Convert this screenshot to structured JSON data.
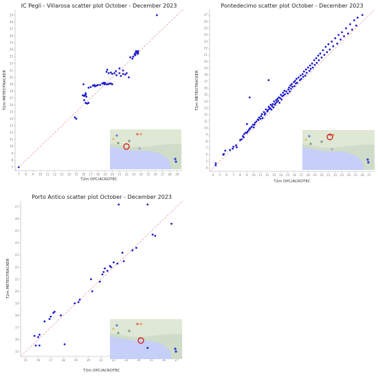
{
  "colors": {
    "point": "#1a1acc",
    "diagonal": "#e8a0a0",
    "frame": "#aaaaaa",
    "tick": "#777777"
  },
  "chart_data": [
    {
      "type": "scatter",
      "title": "IC Pegli - Villarosa scatter plot October - December 2023",
      "xlabel": "T2m DPC/ACROTEC",
      "ylabel": "T2m METEOTRACKER",
      "xticks": [
        7,
        8,
        9,
        10,
        11,
        12,
        13,
        14,
        15,
        16,
        17,
        18,
        19,
        20,
        21,
        22,
        23,
        24,
        25,
        26,
        27,
        28,
        29
      ],
      "yticks": [
        7,
        8,
        9,
        10,
        11,
        12,
        13,
        14,
        15,
        16,
        17,
        18,
        19,
        20,
        21,
        22,
        23,
        24,
        25,
        26,
        27,
        28,
        29
      ],
      "xlim": [
        6.5,
        29.8
      ],
      "ylim": [
        6.5,
        29.8
      ],
      "diagonal": true,
      "points": [
        [
          7.0,
          7.0
        ],
        [
          14.8,
          14.2
        ],
        [
          15.0,
          14.0
        ],
        [
          16.1,
          16.7
        ],
        [
          16.3,
          16.3
        ],
        [
          16.5,
          16.2
        ],
        [
          16.7,
          16.3
        ],
        [
          15.9,
          17.4
        ],
        [
          16.1,
          17.3
        ],
        [
          16.2,
          17.4
        ],
        [
          16.3,
          17.5
        ],
        [
          16.3,
          17.7
        ],
        [
          16.4,
          17.2
        ],
        [
          16.0,
          19.0
        ],
        [
          16.7,
          18.5
        ],
        [
          17.0,
          18.6
        ],
        [
          17.3,
          18.8
        ],
        [
          17.5,
          18.9
        ],
        [
          17.6,
          18.7
        ],
        [
          18.0,
          18.9
        ],
        [
          17.8,
          18.8
        ],
        [
          18.3,
          18.9
        ],
        [
          18.6,
          19.1
        ],
        [
          18.8,
          19.2
        ],
        [
          18.9,
          19.0
        ],
        [
          19.0,
          19.2
        ],
        [
          19.2,
          19.0
        ],
        [
          19.4,
          19.0
        ],
        [
          19.6,
          19.1
        ],
        [
          19.8,
          19.1
        ],
        [
          20.0,
          19.0
        ],
        [
          19.2,
          20.8
        ],
        [
          19.3,
          21.1
        ],
        [
          19.5,
          20.6
        ],
        [
          19.8,
          20.7
        ],
        [
          20.0,
          20.5
        ],
        [
          20.3,
          20.6
        ],
        [
          20.5,
          20.9
        ],
        [
          20.6,
          20.3
        ],
        [
          21.0,
          20.6
        ],
        [
          21.2,
          20.2
        ],
        [
          21.5,
          20.5
        ],
        [
          21.8,
          20.4
        ],
        [
          21.5,
          21.0
        ],
        [
          21.0,
          21.3
        ],
        [
          22.0,
          20.6
        ],
        [
          22.3,
          20.0
        ],
        [
          22.5,
          22.9
        ],
        [
          22.8,
          22.7
        ],
        [
          22.9,
          23.0
        ],
        [
          23.1,
          23.3
        ],
        [
          23.2,
          23.2
        ],
        [
          23.2,
          23.5
        ],
        [
          23.3,
          23.6
        ],
        [
          23.4,
          23.7
        ],
        [
          23.5,
          23.7
        ],
        [
          23.5,
          23.4
        ],
        [
          23.6,
          23.8
        ],
        [
          23.6,
          23.5
        ],
        [
          23.3,
          23.8
        ],
        [
          26.2,
          29.0
        ]
      ]
    },
    {
      "type": "scatter",
      "title": "Pontedecimo scatter plot October - December 2023",
      "xlabel": "T2m DPC/ACROTEC",
      "ylabel": "T2m METEOTRACKER",
      "xticks": [
        4,
        5,
        6,
        7,
        8,
        9,
        10,
        11,
        12,
        13,
        14,
        15,
        16,
        17,
        18,
        19,
        20,
        21,
        22,
        23,
        24,
        25,
        26,
        27
      ],
      "yticks": [
        4,
        5,
        6,
        7,
        8,
        9,
        10,
        11,
        12,
        13,
        14,
        15,
        16,
        17,
        18,
        19,
        20,
        21,
        22,
        23,
        24,
        25,
        26,
        27
      ],
      "xlim": [
        3.5,
        27.8
      ],
      "ylim": [
        3.5,
        27.8
      ],
      "diagonal": true,
      "points": [
        [
          4.4,
          4.4
        ],
        [
          4.4,
          4.7
        ],
        [
          5.5,
          6.0
        ],
        [
          5.6,
          6.1
        ],
        [
          5.8,
          6.6
        ],
        [
          6.5,
          6.7
        ],
        [
          6.9,
          6.9
        ],
        [
          7.0,
          7.2
        ],
        [
          7.4,
          7.4
        ],
        [
          7.5,
          7.1
        ],
        [
          8.0,
          8.2
        ],
        [
          8.2,
          8.3
        ],
        [
          8.4,
          8.8
        ],
        [
          8.5,
          8.6
        ],
        [
          8.6,
          9.1
        ],
        [
          8.8,
          9.3
        ],
        [
          9.0,
          9.3
        ],
        [
          9.1,
          9.5
        ],
        [
          9.3,
          9.7
        ],
        [
          9.4,
          9.9
        ],
        [
          9.0,
          10.6
        ],
        [
          9.5,
          10.0
        ],
        [
          9.7,
          10.2
        ],
        [
          9.9,
          10.5
        ],
        [
          10.0,
          10.1
        ],
        [
          10.1,
          10.5
        ],
        [
          10.2,
          10.8
        ],
        [
          10.4,
          11.0
        ],
        [
          10.6,
          11.3
        ],
        [
          10.7,
          11.2
        ],
        [
          10.8,
          11.6
        ],
        [
          11.0,
          11.4
        ],
        [
          11.1,
          11.8
        ],
        [
          11.2,
          12.1
        ],
        [
          11.3,
          11.5
        ],
        [
          11.5,
          12.4
        ],
        [
          11.6,
          12.0
        ],
        [
          11.7,
          12.2
        ],
        [
          11.8,
          12.8
        ],
        [
          12.0,
          12.5
        ],
        [
          12.1,
          12.7
        ],
        [
          12.2,
          13.2
        ],
        [
          12.3,
          12.9
        ],
        [
          12.4,
          13.0
        ],
        [
          12.5,
          13.5
        ],
        [
          12.6,
          12.8
        ],
        [
          12.7,
          13.3
        ],
        [
          12.8,
          13.6
        ],
        [
          12.9,
          13.1
        ],
        [
          13.0,
          14.0
        ],
        [
          13.1,
          13.5
        ],
        [
          13.2,
          13.7
        ],
        [
          13.3,
          14.2
        ],
        [
          13.4,
          13.9
        ],
        [
          13.5,
          14.4
        ],
        [
          13.6,
          14.1
        ],
        [
          13.7,
          14.6
        ],
        [
          13.8,
          13.8
        ],
        [
          13.9,
          14.5
        ],
        [
          14.0,
          15.0
        ],
        [
          14.1,
          14.3
        ],
        [
          14.2,
          14.8
        ],
        [
          14.3,
          15.3
        ],
        [
          14.4,
          14.9
        ],
        [
          14.5,
          15.6
        ],
        [
          14.6,
          15.1
        ],
        [
          14.8,
          15.5
        ],
        [
          15.0,
          15.2
        ],
        [
          15.1,
          15.8
        ],
        [
          15.2,
          16.1
        ],
        [
          15.3,
          15.5
        ],
        [
          15.4,
          16.4
        ],
        [
          15.5,
          15.9
        ],
        [
          15.6,
          16.6
        ],
        [
          15.7,
          16.2
        ],
        [
          15.9,
          16.9
        ],
        [
          16.0,
          16.3
        ],
        [
          16.1,
          17.1
        ],
        [
          16.2,
          16.7
        ],
        [
          16.3,
          17.4
        ],
        [
          16.4,
          16.8
        ],
        [
          16.6,
          17.6
        ],
        [
          16.8,
          17.2
        ],
        [
          16.9,
          17.9
        ],
        [
          17.0,
          17.4
        ],
        [
          17.2,
          18.1
        ],
        [
          17.3,
          17.7
        ],
        [
          17.4,
          18.5
        ],
        [
          17.6,
          17.9
        ],
        [
          17.7,
          18.8
        ],
        [
          17.8,
          18.3
        ],
        [
          18.0,
          19.1
        ],
        [
          18.2,
          18.6
        ],
        [
          18.3,
          19.4
        ],
        [
          18.4,
          18.9
        ],
        [
          18.6,
          19.7
        ],
        [
          18.7,
          19.1
        ],
        [
          18.9,
          20.2
        ],
        [
          19.0,
          19.5
        ],
        [
          19.2,
          20.5
        ],
        [
          19.3,
          19.8
        ],
        [
          19.5,
          20.9
        ],
        [
          19.6,
          20.2
        ],
        [
          19.8,
          21.2
        ],
        [
          20.0,
          20.6
        ],
        [
          20.2,
          21.7
        ],
        [
          20.4,
          21.0
        ],
        [
          20.6,
          22.2
        ],
        [
          20.8,
          21.4
        ],
        [
          21.0,
          22.6
        ],
        [
          21.2,
          21.8
        ],
        [
          21.5,
          23.0
        ],
        [
          21.7,
          22.3
        ],
        [
          22.0,
          23.5
        ],
        [
          22.3,
          22.7
        ],
        [
          22.5,
          24.0
        ],
        [
          22.8,
          23.3
        ],
        [
          23.0,
          24.4
        ],
        [
          23.3,
          23.8
        ],
        [
          23.6,
          25.0
        ],
        [
          23.9,
          24.2
        ],
        [
          24.2,
          25.6
        ],
        [
          24.5,
          24.8
        ],
        [
          24.8,
          26.2
        ],
        [
          25.1,
          25.4
        ],
        [
          25.3,
          26.6
        ],
        [
          12.2,
          17.2
        ],
        [
          9.4,
          14.6
        ],
        [
          26.0,
          27.0
        ]
      ]
    },
    {
      "type": "scatter",
      "title": "Porto Antico scatter plot October - December 2023",
      "xlabel": "T2m DPC/ACROTEC",
      "ylabel": "T2m METEOTRACKER",
      "xticks": [
        15,
        16,
        17,
        18,
        19,
        20,
        21,
        22,
        23,
        24,
        25,
        26,
        27
      ],
      "yticks": [
        15,
        16,
        17,
        18,
        19,
        20,
        21,
        22,
        23,
        24,
        25,
        26,
        27
      ],
      "xlim": [
        14.6,
        27.5
      ],
      "ylim": [
        14.6,
        27.5
      ],
      "diagonal": true,
      "points": [
        [
          15.7,
          16.3
        ],
        [
          15.8,
          15.5
        ],
        [
          16.0,
          16.2
        ],
        [
          16.1,
          16.4
        ],
        [
          16.1,
          15.5
        ],
        [
          16.5,
          17.5
        ],
        [
          16.9,
          17.7
        ],
        [
          17.0,
          17.9
        ],
        [
          17.2,
          18.2
        ],
        [
          17.3,
          18.3
        ],
        [
          17.8,
          18.0
        ],
        [
          18.1,
          15.6
        ],
        [
          18.9,
          19.0
        ],
        [
          19.2,
          19.1
        ],
        [
          19.3,
          19.3
        ],
        [
          20.2,
          21.0
        ],
        [
          20.3,
          20.0
        ],
        [
          20.9,
          20.8
        ],
        [
          21.1,
          21.4
        ],
        [
          21.2,
          21.6
        ],
        [
          21.3,
          21.9
        ],
        [
          21.5,
          21.7
        ],
        [
          21.7,
          22.1
        ],
        [
          21.8,
          22.0
        ],
        [
          22.0,
          22.4
        ],
        [
          22.3,
          22.3
        ],
        [
          22.8,
          22.5
        ],
        [
          22.7,
          23.2
        ],
        [
          23.5,
          23.4
        ],
        [
          23.8,
          23.6
        ],
        [
          22.4,
          27.2
        ],
        [
          24.7,
          27.2
        ],
        [
          25.1,
          24.7
        ],
        [
          25.3,
          24.6
        ],
        [
          26.6,
          25.6
        ],
        [
          24.7,
          15.3
        ]
      ]
    }
  ],
  "map_inset": {
    "kind": "location map"
  }
}
